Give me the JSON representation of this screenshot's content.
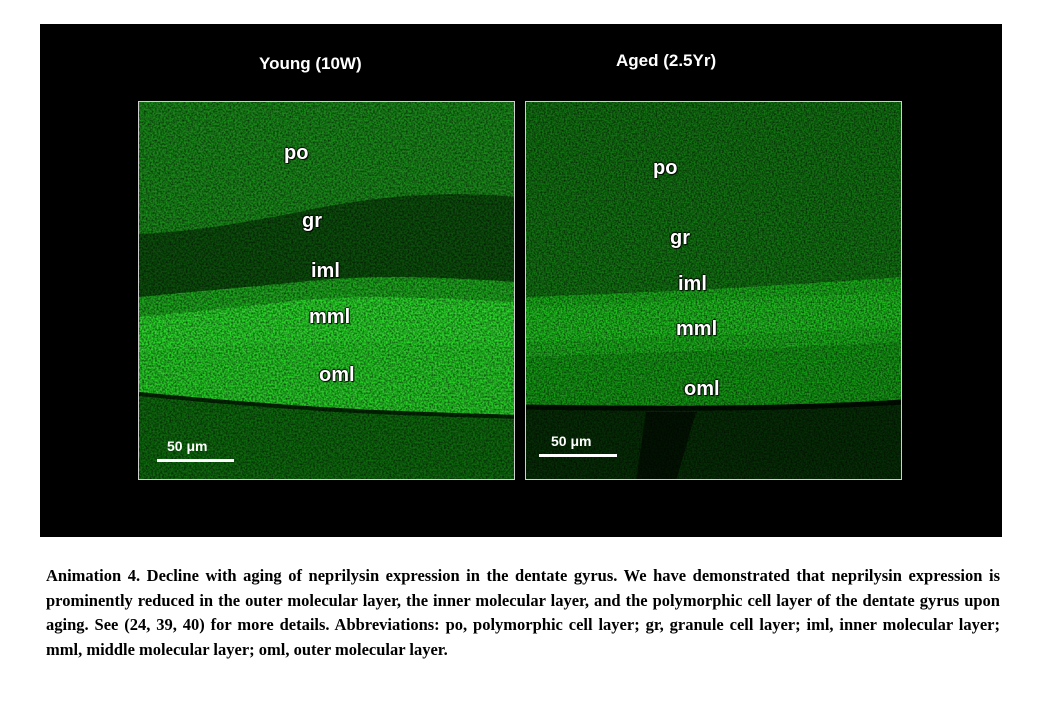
{
  "figure": {
    "colors": {
      "background": "#000000",
      "fluorescence": "#22dd22",
      "label": "#ffffff"
    },
    "panels": [
      {
        "title": "Young (10W)",
        "labels": [
          "po",
          "gr",
          "iml",
          "mml",
          "oml"
        ],
        "scale_bar": "50 μm"
      },
      {
        "title": "Aged (2.5Yr)",
        "labels": [
          "po",
          "gr",
          "iml",
          "mml",
          "oml"
        ],
        "scale_bar": "50 μm"
      }
    ]
  },
  "caption": "Animation 4. Decline with aging of neprilysin expression in the dentate gyrus. We have demonstrated that neprilysin expression is prominently reduced in the outer molecular layer, the inner molecular layer, and the polymorphic cell layer of the dentate gyrus upon aging. See (24, 39, 40) for more details. Abbreviations: po, polymorphic cell layer; gr, granule cell layer; iml, inner molecular layer; mml, middle molecular layer; oml, outer molecular layer."
}
